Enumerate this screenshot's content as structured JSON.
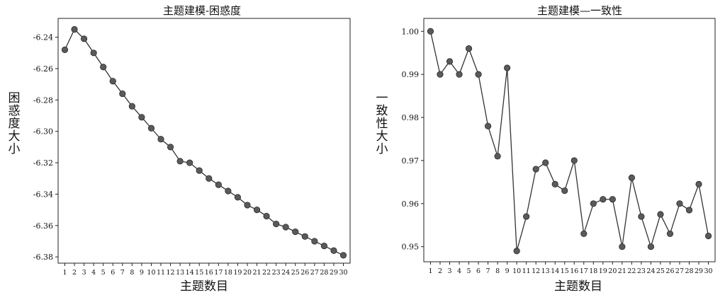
{
  "chart_data": [
    {
      "type": "line",
      "title": "主题建模-困惑度",
      "xlabel": "主题数目",
      "ylabel": "困惑度大小",
      "x": [
        1,
        2,
        3,
        4,
        5,
        6,
        7,
        8,
        9,
        10,
        11,
        12,
        13,
        14,
        15,
        16,
        17,
        18,
        19,
        20,
        21,
        22,
        23,
        24,
        25,
        26,
        27,
        28,
        29,
        30
      ],
      "series": [
        {
          "values": [
            -6.248,
            -6.235,
            -6.241,
            -6.25,
            -6.259,
            -6.268,
            -6.276,
            -6.284,
            -6.291,
            -6.298,
            -6.305,
            -6.31,
            -6.319,
            -6.32,
            -6.325,
            -6.33,
            -6.334,
            -6.338,
            -6.342,
            -6.347,
            -6.35,
            -6.354,
            -6.359,
            -6.361,
            -6.364,
            -6.367,
            -6.37,
            -6.373,
            -6.376,
            -6.379
          ]
        }
      ],
      "yticks": [
        "-6.24",
        "-6.26",
        "-6.28",
        "-6.30",
        "-6.32",
        "-6.34",
        "-6.36",
        "-6.38"
      ],
      "ytick_values": [
        -6.24,
        -6.26,
        -6.28,
        -6.3,
        -6.32,
        -6.34,
        -6.36,
        -6.38
      ],
      "xticks": [
        "1",
        "2",
        "3",
        "4",
        "5",
        "6",
        "7",
        "8",
        "9",
        "10",
        "11",
        "12",
        "13",
        "14",
        "15",
        "16",
        "17",
        "18",
        "19",
        "20",
        "21",
        "22",
        "23",
        "24",
        "25",
        "26",
        "27",
        "28",
        "29",
        "30"
      ],
      "ylim": [
        -6.384,
        -6.228
      ],
      "xlim": [
        0.3,
        30.7
      ],
      "grid": false,
      "line_color": "#333333",
      "marker_color": "#5a5a5a"
    },
    {
      "type": "line",
      "title": "主题建模—一致性",
      "xlabel": "主题数目",
      "ylabel": "一致性大小",
      "x": [
        1,
        2,
        3,
        4,
        5,
        6,
        7,
        8,
        9,
        10,
        11,
        12,
        13,
        14,
        15,
        16,
        17,
        18,
        19,
        20,
        21,
        22,
        23,
        24,
        25,
        26,
        27,
        28,
        29,
        30
      ],
      "series": [
        {
          "values": [
            1.0,
            0.99,
            0.993,
            0.99,
            0.996,
            0.99,
            0.978,
            0.971,
            0.9915,
            0.949,
            0.957,
            0.968,
            0.9695,
            0.9645,
            0.963,
            0.97,
            0.953,
            0.96,
            0.961,
            0.961,
            0.95,
            0.966,
            0.957,
            0.95,
            0.9575,
            0.953,
            0.96,
            0.9585,
            0.9645,
            0.9525
          ]
        }
      ],
      "yticks": [
        "1.00",
        "0.99",
        "0.98",
        "0.97",
        "0.96",
        "0.95"
      ],
      "ytick_values": [
        1.0,
        0.99,
        0.98,
        0.97,
        0.96,
        0.95
      ],
      "xticks": [
        "1",
        "2",
        "3",
        "4",
        "5",
        "6",
        "7",
        "8",
        "9",
        "10",
        "11",
        "12",
        "13",
        "14",
        "15",
        "16",
        "17",
        "18",
        "19",
        "20",
        "21",
        "22",
        "23",
        "24",
        "25",
        "26",
        "27",
        "28",
        "29",
        "30"
      ],
      "ylim": [
        0.9465,
        1.003
      ],
      "xlim": [
        0.3,
        30.7
      ],
      "grid": false,
      "line_color": "#333333",
      "marker_color": "#5a5a5a"
    }
  ]
}
